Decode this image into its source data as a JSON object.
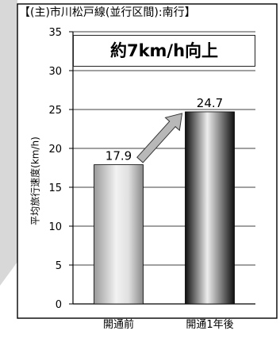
{
  "chart_data": {
    "type": "bar",
    "title": "【(主)市川松戸線(並行区間):南行】",
    "annotation": "約7km/h向上",
    "ylabel": "平均旅行速度(km/h)",
    "xlabel": "",
    "categories": [
      "開通前",
      "開通1年後"
    ],
    "values": [
      17.9,
      24.7
    ],
    "value_labels": [
      "17.9",
      "24.7"
    ],
    "ylim": [
      0,
      35
    ],
    "yticks": [
      0,
      5,
      10,
      15,
      20,
      25,
      30,
      35
    ],
    "grid": true,
    "legend": "none",
    "arrow": "from first bar to second bar, pointing up-right",
    "colors": {
      "bar_light": "#e6e6e6",
      "bar_dark": "#3c3c3c",
      "arrow": "#b8b8b8",
      "frame": "#000000",
      "grid": "#000000"
    }
  }
}
